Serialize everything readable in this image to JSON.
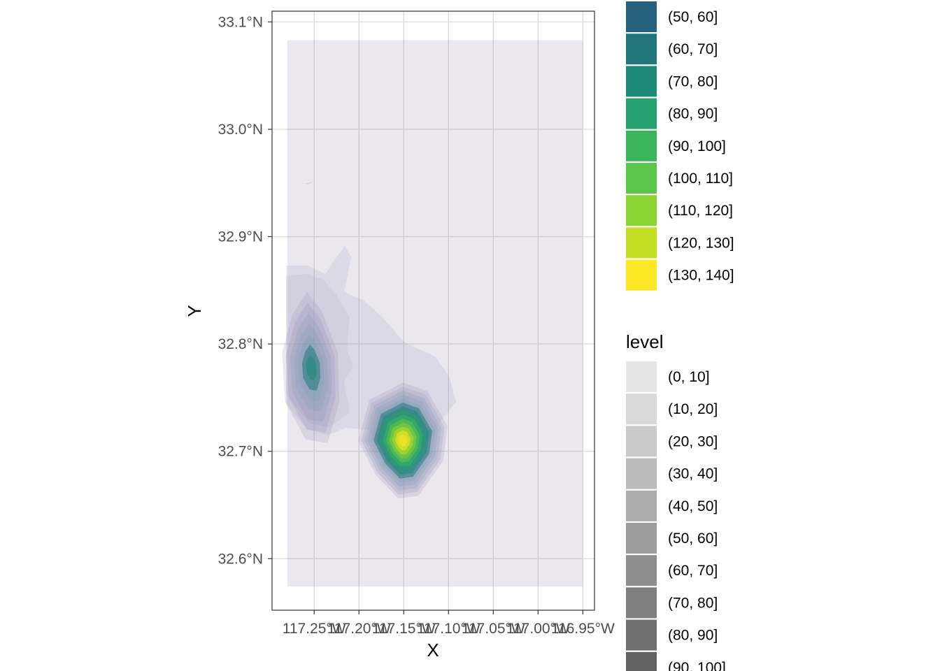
{
  "chart_data": {
    "type": "contour_density",
    "title": "",
    "xlabel": "X",
    "ylabel": "Y",
    "x_ticks": [
      "117.25°W",
      "117.20°W",
      "117.15°W",
      "117.10°W",
      "117.05°W",
      "117.00°W",
      "116.95°W"
    ],
    "x_tick_values": [
      -117.25,
      -117.2,
      -117.15,
      -117.1,
      -117.05,
      -117.0,
      -116.95
    ],
    "y_ticks": [
      "32.6°N",
      "32.7°N",
      "32.8°N",
      "32.9°N",
      "33.0°N",
      "33.1°N"
    ],
    "y_tick_values": [
      32.6,
      32.7,
      32.8,
      32.9,
      33.0,
      33.1
    ],
    "xlim": [
      -117.297,
      -116.937
    ],
    "ylim": [
      32.552,
      33.11
    ],
    "grid": true,
    "background_extent": {
      "x": [
        -117.28,
        -116.95
      ],
      "y": [
        32.574,
        33.083
      ]
    },
    "hotspots": [
      {
        "lon": -117.253,
        "lat": 32.778,
        "peak_level": 70
      },
      {
        "lon": -117.151,
        "lat": 32.71,
        "peak_level": 140
      }
    ],
    "legend_fill": {
      "title": "",
      "entries": [
        {
          "label": "(50, 60]",
          "color": "#25617f"
        },
        {
          "label": "(60, 70]",
          "color": "#21767c"
        },
        {
          "label": "(70, 80]",
          "color": "#1f8a77"
        },
        {
          "label": "(80, 90]",
          "color": "#25a16f"
        },
        {
          "label": "(90, 100]",
          "color": "#3bb55c"
        },
        {
          "label": "(100, 110]",
          "color": "#5dc54b"
        },
        {
          "label": "(110, 120]",
          "color": "#8cd431"
        },
        {
          "label": "(120, 130]",
          "color": "#c2df23"
        },
        {
          "label": "(130, 140]",
          "color": "#fbe725"
        }
      ]
    },
    "legend_alpha": {
      "title": "level",
      "entries": [
        {
          "label": "(0, 10]",
          "color": "#e6e6e6"
        },
        {
          "label": "(10, 20]",
          "color": "#d9d9d9"
        },
        {
          "label": "(20, 30]",
          "color": "#cacaca"
        },
        {
          "label": "(30, 40]",
          "color": "#bbbbbb"
        },
        {
          "label": "(40, 50]",
          "color": "#ababab"
        },
        {
          "label": "(50, 60]",
          "color": "#9c9c9c"
        },
        {
          "label": "(60, 70]",
          "color": "#8d8d8d"
        },
        {
          "label": "(70, 80]",
          "color": "#7e7e7e"
        },
        {
          "label": "(80, 90]",
          "color": "#707070"
        },
        {
          "label": "(90, 100]",
          "color": "#626262"
        }
      ]
    }
  }
}
